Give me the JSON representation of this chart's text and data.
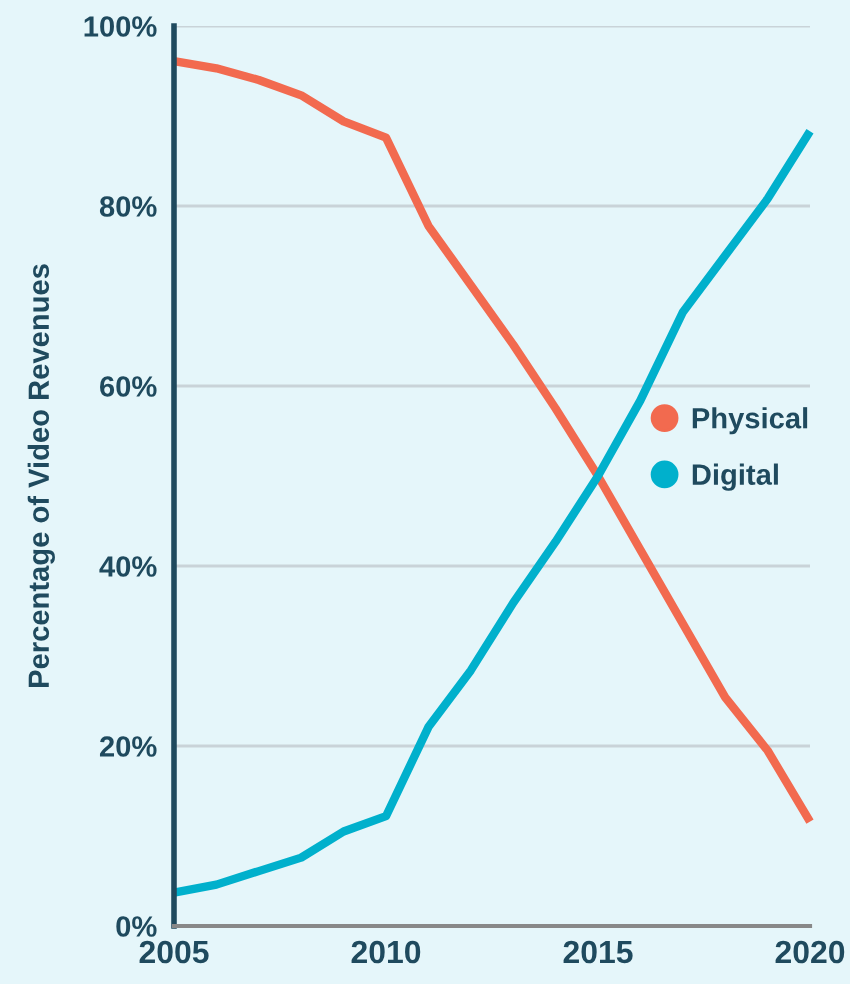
{
  "chart_data": {
    "type": "line",
    "ylabel": "Percentage of Video Revenues",
    "x": [
      2005,
      2006,
      2007,
      2008,
      2009,
      2010,
      2011,
      2012,
      2013,
      2014,
      2015,
      2016,
      2017,
      2018,
      2019,
      2020
    ],
    "series": [
      {
        "name": "Physical",
        "color": "#f26a4f",
        "values": [
          96.1,
          95.3,
          94.0,
          92.3,
          89.4,
          87.6,
          77.8,
          71.2,
          64.6,
          57.5,
          50,
          41.8,
          33.6,
          25.4,
          19.5,
          11.6
        ]
      },
      {
        "name": "Digital",
        "color": "#00b0cc",
        "values": [
          3.7,
          4.6,
          6.1,
          7.6,
          10.5,
          12.2,
          22.1,
          28.4,
          35.9,
          42.7,
          50,
          58.4,
          68.2,
          74.5,
          80.8,
          88.3
        ]
      }
    ],
    "xlim": [
      2005,
      2020
    ],
    "xticks": [
      2005,
      2010,
      2015,
      2020
    ],
    "ylim": [
      0,
      100
    ],
    "yticks": [
      {
        "value": 0,
        "label": "0%"
      },
      {
        "value": 20,
        "label": "20%"
      },
      {
        "value": 40,
        "label": "40%"
      },
      {
        "value": 60,
        "label": "60%"
      },
      {
        "value": 80,
        "label": "80%"
      },
      {
        "value": 100,
        "label": "100%"
      }
    ],
    "grid": "y",
    "legend": "right",
    "marker": "none",
    "line_style": "solid"
  }
}
